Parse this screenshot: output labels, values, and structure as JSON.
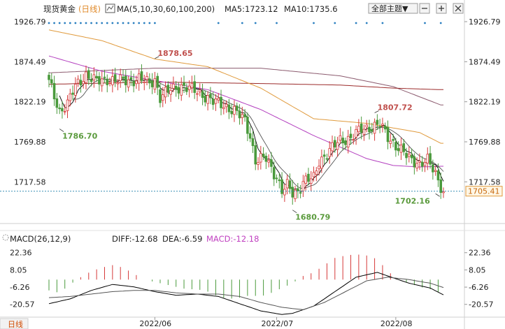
{
  "header": {
    "title": "现货黄金",
    "period": "(日线)",
    "ma_label": "MA(5,10,30,60,100,200)",
    "ma5": "MA5:1723.12",
    "ma10": "MA10:1735.6",
    "theme_select": "全部主题▼"
  },
  "macd_header": {
    "label": "MACD(26,12,9)",
    "diff": "DIFF:-12.68",
    "dea": "DEA:-6.59",
    "macd": "MACD:-12.18"
  },
  "footer": {
    "period_tab": "日线"
  },
  "chart_data": {
    "type": "candlestick",
    "main": {
      "y_ticks": [
        "1926.79",
        "1874.49",
        "1822.19",
        "1769.88",
        "1717.58"
      ],
      "ylim": [
        1665,
        1935
      ],
      "current_price": "1705.41",
      "annotations": [
        {
          "label": "1878.65",
          "x": 40,
          "y": 1878.65
        },
        {
          "label": "1786.70",
          "x": 4,
          "y": 1786.7
        },
        {
          "label": "1807.72",
          "x": 123,
          "y": 1807.72
        },
        {
          "label": "1680.79",
          "x": 92,
          "y": 1680.79
        },
        {
          "label": "1702.16",
          "x": 146,
          "y": 1702.16
        }
      ],
      "anchors": [
        [
          0,
          1848
        ],
        [
          4,
          1810
        ],
        [
          7,
          1820
        ],
        [
          10,
          1842
        ],
        [
          14,
          1858
        ],
        [
          18,
          1848
        ],
        [
          22,
          1852
        ],
        [
          26,
          1849
        ],
        [
          30,
          1850
        ],
        [
          34,
          1852
        ],
        [
          38,
          1846
        ],
        [
          40,
          1852
        ],
        [
          42,
          1828
        ],
        [
          46,
          1838
        ],
        [
          50,
          1843
        ],
        [
          54,
          1838
        ],
        [
          58,
          1832
        ],
        [
          62,
          1822
        ],
        [
          66,
          1818
        ],
        [
          70,
          1810
        ],
        [
          74,
          1798
        ],
        [
          76,
          1778
        ],
        [
          78,
          1745
        ],
        [
          82,
          1748
        ],
        [
          86,
          1724
        ],
        [
          88,
          1705
        ],
        [
          90,
          1712
        ],
        [
          92,
          1703
        ],
        [
          94,
          1706
        ],
        [
          96,
          1718
        ],
        [
          100,
          1722
        ],
        [
          102,
          1745
        ],
        [
          106,
          1758
        ],
        [
          110,
          1772
        ],
        [
          114,
          1775
        ],
        [
          118,
          1786
        ],
        [
          122,
          1790
        ],
        [
          125,
          1792
        ],
        [
          128,
          1776
        ],
        [
          132,
          1762
        ],
        [
          136,
          1748
        ],
        [
          140,
          1742
        ],
        [
          143,
          1745
        ],
        [
          146,
          1728
        ],
        [
          149,
          1705
        ]
      ],
      "ma_lines": [
        {
          "name": "MA200",
          "color": "#8b5a6e",
          "points": [
            [
              0,
              1860
            ],
            [
              40,
              1866
            ],
            [
              80,
              1866
            ],
            [
              110,
              1856
            ],
            [
              130,
              1842
            ],
            [
              148,
              1818
            ]
          ]
        },
        {
          "name": "MA100",
          "color": "#9b2a2a",
          "points": [
            [
              0,
              1845
            ],
            [
              40,
              1848
            ],
            [
              80,
              1846
            ],
            [
              110,
              1844
            ],
            [
              130,
              1840
            ],
            [
              148,
              1838
            ]
          ]
        },
        {
          "name": "MA60",
          "color": "#e09a3c",
          "points": [
            [
              0,
              1916
            ],
            [
              20,
              1902
            ],
            [
              40,
              1878
            ],
            [
              60,
              1868
            ],
            [
              80,
              1840
            ],
            [
              100,
              1800
            ],
            [
              120,
              1794
            ],
            [
              140,
              1782
            ],
            [
              148,
              1768
            ]
          ]
        },
        {
          "name": "MA30",
          "color": "#b33fbf",
          "points": [
            [
              0,
              1882
            ],
            [
              20,
              1862
            ],
            [
              40,
              1850
            ],
            [
              60,
              1838
            ],
            [
              80,
              1812
            ],
            [
              100,
              1778
            ],
            [
              120,
              1748
            ],
            [
              130,
              1739
            ],
            [
              140,
              1737
            ],
            [
              148,
              1738
            ]
          ]
        }
      ]
    },
    "macd": {
      "y_ticks": [
        "22.36",
        "8.05",
        "-6.26",
        "-20.57"
      ],
      "ylim": [
        -30,
        28
      ],
      "hist_anchors": [
        [
          0,
          -9
        ],
        [
          4,
          -11
        ],
        [
          8,
          -4
        ],
        [
          12,
          2
        ],
        [
          16,
          7
        ],
        [
          20,
          10
        ],
        [
          24,
          12
        ],
        [
          28,
          10
        ],
        [
          32,
          5
        ],
        [
          36,
          0
        ],
        [
          40,
          -2
        ],
        [
          44,
          -4
        ],
        [
          48,
          -6
        ],
        [
          52,
          -8
        ],
        [
          56,
          -8
        ],
        [
          60,
          -10
        ],
        [
          64,
          -14
        ],
        [
          68,
          -16
        ],
        [
          72,
          -15
        ],
        [
          76,
          -13
        ],
        [
          80,
          -14
        ],
        [
          84,
          -11
        ],
        [
          88,
          -7
        ],
        [
          92,
          -3
        ],
        [
          96,
          3
        ],
        [
          100,
          6
        ],
        [
          104,
          12
        ],
        [
          108,
          18
        ],
        [
          112,
          20
        ],
        [
          116,
          21
        ],
        [
          120,
          20
        ],
        [
          124,
          17
        ],
        [
          128,
          7
        ],
        [
          132,
          0
        ],
        [
          136,
          -3
        ],
        [
          140,
          -6
        ],
        [
          144,
          -8
        ],
        [
          149,
          -12
        ]
      ],
      "diff_anchors": [
        [
          0,
          -20
        ],
        [
          8,
          -16
        ],
        [
          16,
          -9
        ],
        [
          24,
          -4
        ],
        [
          32,
          -6
        ],
        [
          40,
          -10
        ],
        [
          48,
          -13
        ],
        [
          56,
          -12
        ],
        [
          64,
          -14
        ],
        [
          72,
          -20
        ],
        [
          80,
          -26
        ],
        [
          88,
          -29
        ],
        [
          92,
          -28
        ],
        [
          100,
          -22
        ],
        [
          108,
          -10
        ],
        [
          116,
          2
        ],
        [
          124,
          6
        ],
        [
          128,
          3
        ],
        [
          136,
          -3
        ],
        [
          144,
          -7
        ],
        [
          149,
          -12.68
        ]
      ],
      "dea_anchors": [
        [
          0,
          -15
        ],
        [
          8,
          -14
        ],
        [
          16,
          -12
        ],
        [
          24,
          -10
        ],
        [
          32,
          -9
        ],
        [
          40,
          -9
        ],
        [
          48,
          -11
        ],
        [
          56,
          -12
        ],
        [
          64,
          -12
        ],
        [
          72,
          -14
        ],
        [
          80,
          -19
        ],
        [
          88,
          -23
        ],
        [
          96,
          -25
        ],
        [
          104,
          -19
        ],
        [
          112,
          -10
        ],
        [
          120,
          -1
        ],
        [
          128,
          2
        ],
        [
          136,
          0
        ],
        [
          144,
          -3
        ],
        [
          149,
          -6.59
        ]
      ]
    },
    "x_ticks": [
      {
        "label": "2022/06",
        "x": 40
      },
      {
        "label": "2022/07",
        "x": 86
      },
      {
        "label": "2022/08",
        "x": 131
      }
    ],
    "n_candles": 150
  }
}
